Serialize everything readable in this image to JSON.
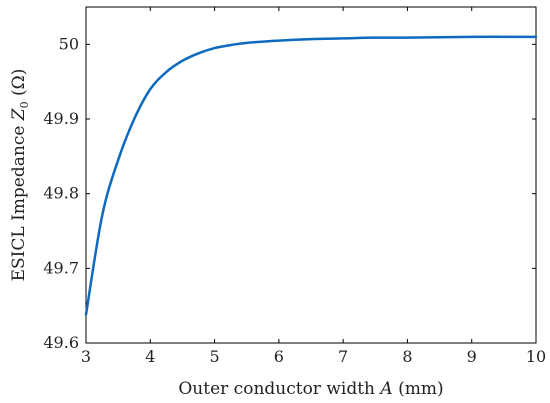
{
  "chart_data": {
    "type": "line",
    "xlabel": "Outer conductor width A (mm)",
    "ylabel": "ESICL Impedance Z0 (Ω)",
    "xlim": [
      3,
      10
    ],
    "ylim": [
      49.6,
      50.05
    ],
    "xticks": [
      3,
      4,
      5,
      6,
      7,
      8,
      9,
      10
    ],
    "yticks": [
      49.6,
      49.7,
      49.8,
      49.9,
      50
    ],
    "grid": false,
    "series_color": "#0d6abf",
    "series": [
      {
        "x": [
          3,
          3.25,
          3.5,
          3.75,
          4,
          4.25,
          4.5,
          4.75,
          5,
          5.25,
          5.5,
          6,
          6.5,
          7,
          7.5,
          8,
          9,
          10
        ],
        "y": [
          49.638,
          49.77,
          49.845,
          49.9,
          49.94,
          49.963,
          49.978,
          49.988,
          49.995,
          49.999,
          50.002,
          50.005,
          50.007,
          50.008,
          50.009,
          50.009,
          50.01,
          50.01
        ]
      }
    ]
  },
  "xlabel_parts": {
    "pre": "Outer conductor width ",
    "var": "A",
    "post": " (mm)"
  },
  "ylabel_parts": {
    "pre": "ESICL Impedance ",
    "var": "Z",
    "sub": "0",
    "post": " (Ω)"
  }
}
